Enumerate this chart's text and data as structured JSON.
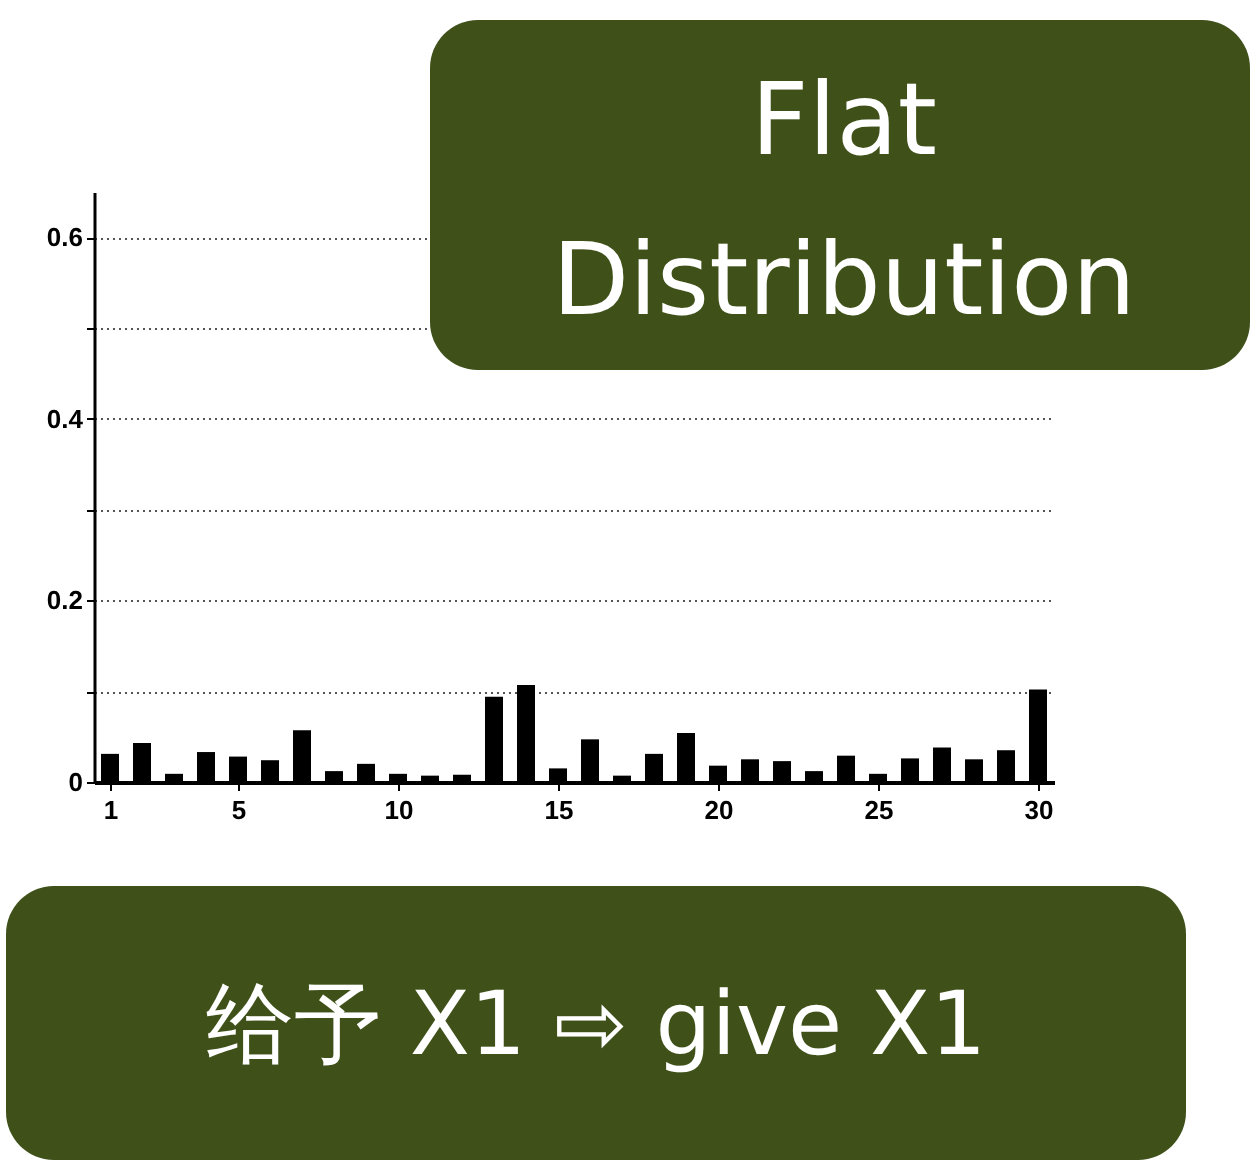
{
  "chart_data": {
    "type": "bar",
    "x": [
      1,
      2,
      3,
      4,
      5,
      6,
      7,
      8,
      9,
      10,
      11,
      12,
      13,
      14,
      15,
      16,
      17,
      18,
      19,
      20,
      21,
      22,
      23,
      24,
      25,
      26,
      27,
      28,
      29,
      30
    ],
    "values": [
      0.031,
      0.043,
      0.009,
      0.033,
      0.028,
      0.024,
      0.057,
      0.012,
      0.02,
      0.009,
      0.007,
      0.008,
      0.094,
      0.107,
      0.015,
      0.047,
      0.007,
      0.031,
      0.054,
      0.018,
      0.025,
      0.023,
      0.012,
      0.029,
      0.009,
      0.026,
      0.038,
      0.025,
      0.035,
      0.102
    ],
    "color": "#000000",
    "xlim": [
      0.5,
      30.5
    ],
    "xticks": [
      1,
      5,
      10,
      15,
      20,
      25,
      30
    ],
    "ylim": [
      0,
      0.65
    ],
    "yticks": [
      0,
      {
        "value": 0.1,
        "label": null
      },
      0.2,
      {
        "value": 0.3,
        "label": null
      },
      0.4,
      {
        "value": 0.5,
        "label": null
      },
      0.6
    ],
    "grid": "y",
    "annotations": [
      "Flat Distribution",
      "给予 X1 ⇨ give X1"
    ]
  }
}
